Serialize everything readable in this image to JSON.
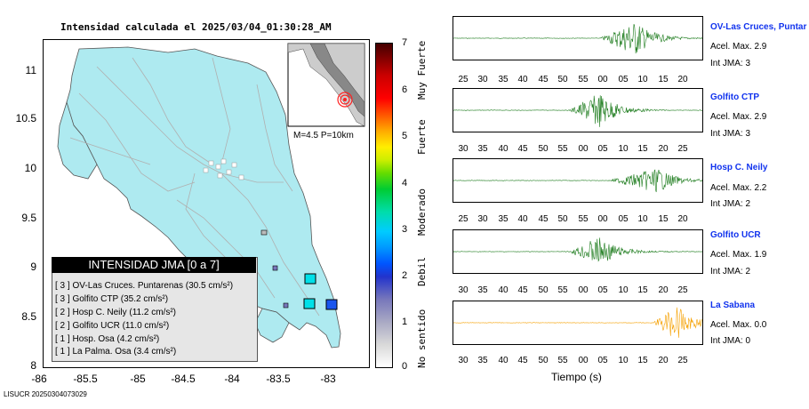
{
  "map": {
    "title": "Intensidad calculada el 2025/03/04_01:30:28_AM",
    "y_ticks": [
      "11",
      "10.5",
      "10",
      "9.5",
      "9",
      "8.5",
      "8"
    ],
    "x_ticks": [
      "-86",
      "-85.5",
      "-85",
      "-84.5",
      "-84",
      "-83.5",
      "-83"
    ],
    "inset_label": "M=4.5 P=10km",
    "colors": {
      "land": "#aeeaf0",
      "sea": "#ffffff",
      "roads": "#b0b0b0",
      "epicenter": "#ff2222"
    }
  },
  "legend": {
    "title": "INTENSIDAD JMA [0 a 7]",
    "entries": [
      {
        "level": "[ 3 ]",
        "text": "OV-Las Cruces. Puntarenas (30.5 cm/s²)"
      },
      {
        "level": "[ 3 ]",
        "text": "Golfito CTP (35.2 cm/s²)"
      },
      {
        "level": "[ 2 ]",
        "text": "Hosp C. Neily (11.2 cm/s²)"
      },
      {
        "level": "[ 2 ]",
        "text": "Golfito UCR (11.0 cm/s²)"
      },
      {
        "level": "[ 1 ]",
        "text": "Hosp. Osa (4.2 cm/s²)"
      },
      {
        "level": "[ 1 ]",
        "text": "La Palma. Osa (3.4 cm/s²)"
      }
    ]
  },
  "colorbar": {
    "values": [
      "7",
      "6",
      "5",
      "4",
      "3",
      "2",
      "1",
      "0"
    ],
    "categories": [
      "Muy Fuerte",
      "Fuerte",
      "Moderado",
      "Debil",
      "No sentido"
    ]
  },
  "stations": [
    {
      "name": "OV-Las Cruces, Puntar",
      "accel": "Acel. Max. 2.9",
      "jma": "Int JMA: 3",
      "color": "#1a7a1a",
      "ticks": [
        "25",
        "30",
        "35",
        "40",
        "45",
        "50",
        "55",
        "00",
        "05",
        "10",
        "15",
        "20"
      ]
    },
    {
      "name": "Golfito CTP",
      "accel": "Acel. Max. 2.9",
      "jma": "Int JMA: 3",
      "color": "#1a7a1a",
      "ticks": [
        "30",
        "35",
        "40",
        "45",
        "50",
        "55",
        "00",
        "05",
        "10",
        "15",
        "20",
        "25"
      ]
    },
    {
      "name": "Hosp C. Neily",
      "accel": "Acel. Max. 2.2",
      "jma": "Int JMA: 2",
      "color": "#1a7a1a",
      "ticks": [
        "25",
        "30",
        "35",
        "40",
        "45",
        "50",
        "55",
        "00",
        "05",
        "10",
        "15",
        "20"
      ]
    },
    {
      "name": "Golfito UCR",
      "accel": "Acel. Max. 1.9",
      "jma": "Int JMA: 2",
      "color": "#1a7a1a",
      "ticks": [
        "30",
        "35",
        "40",
        "45",
        "50",
        "55",
        "00",
        "05",
        "10",
        "15",
        "20",
        "25"
      ]
    },
    {
      "name": "La Sabana",
      "accel": "Acel. Max. 0.0",
      "jma": "Int JMA: 0",
      "color": "#f5a000",
      "ticks": [
        "30",
        "35",
        "40",
        "45",
        "50",
        "55",
        "00",
        "05",
        "10",
        "15",
        "20",
        "25"
      ]
    }
  ],
  "time_axis_label": "Tiempo (s)",
  "footer": "LISUCR 20250304073029"
}
